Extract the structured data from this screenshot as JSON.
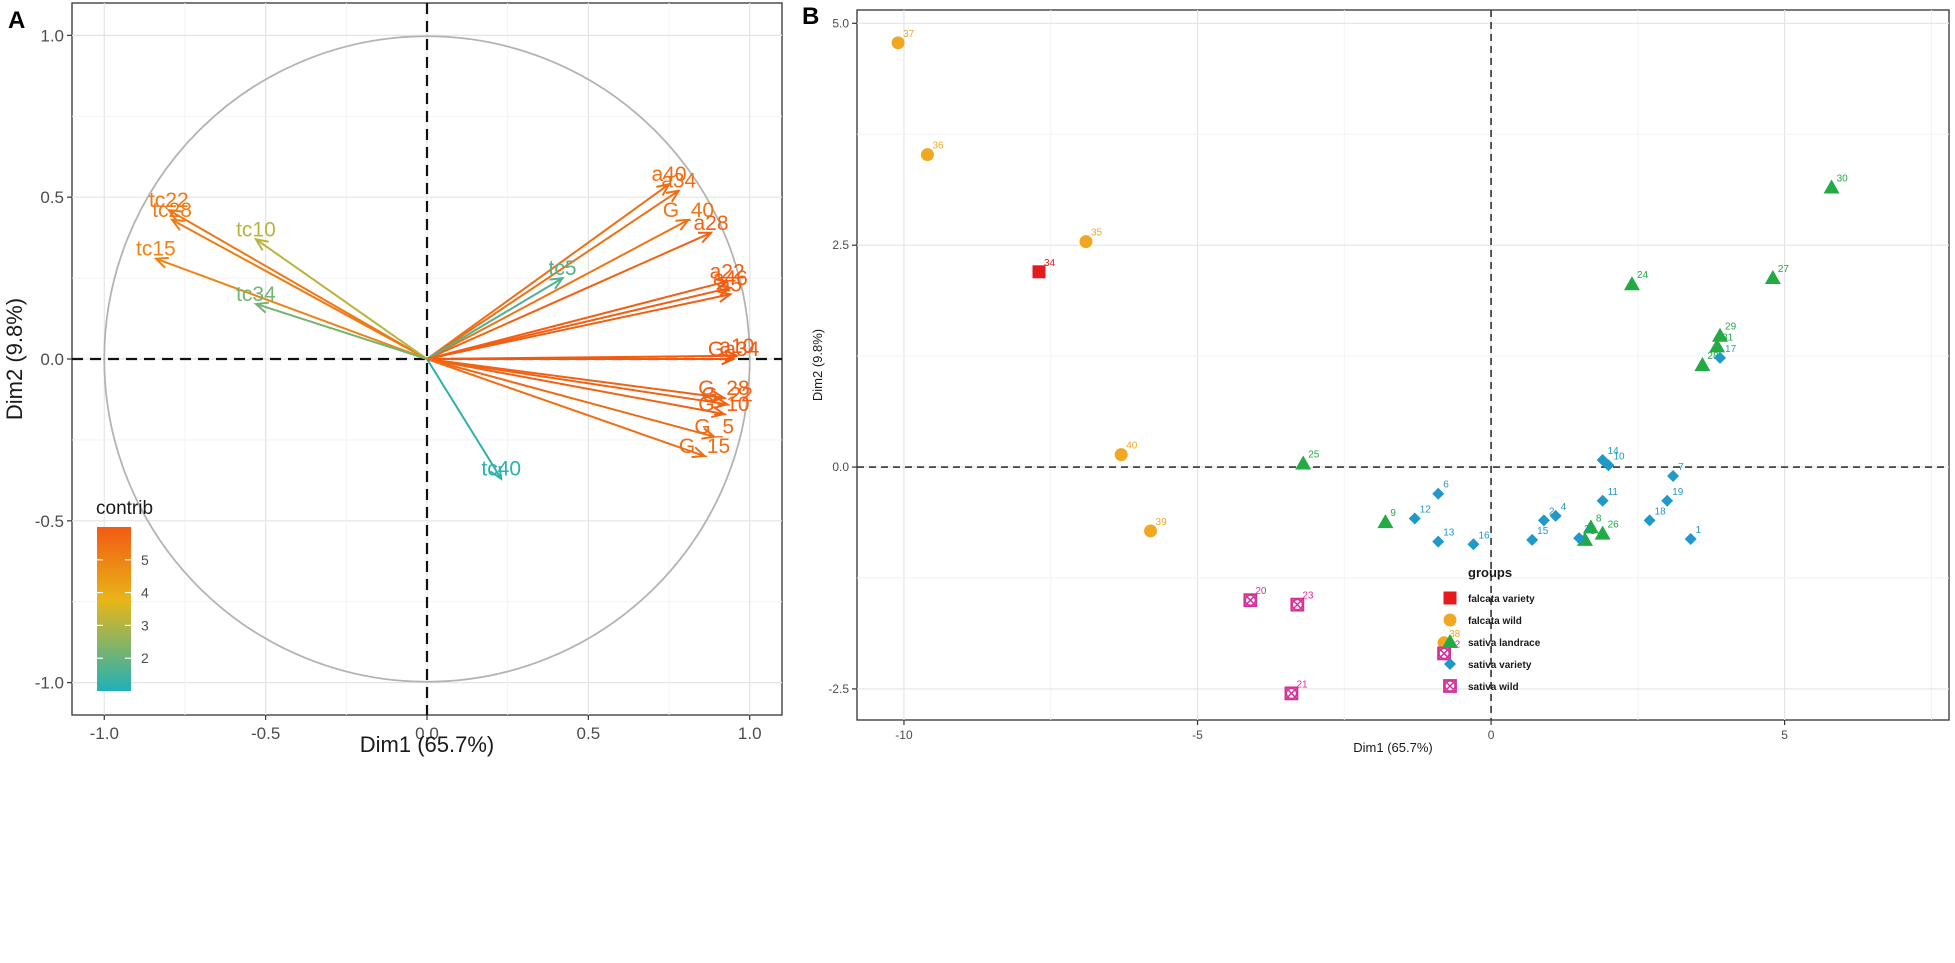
{
  "panels": {
    "a": {
      "letter": "A"
    },
    "b": {
      "letter": "B"
    }
  },
  "colors": {
    "contrib_low": "#1eb1b8",
    "contrib_mid": "#e8b618",
    "contrib_high": "#f25a12",
    "circle": "#b3b3b3",
    "falcata_variety": "#e41a1c",
    "falcata_wild": "#f0a823",
    "sativa_landrace": "#22aa44",
    "sativa_variety": "#1f99c9",
    "sativa_wild": "#d4309a"
  },
  "chart_data": [
    {
      "id": "variables-pca",
      "type": "pca-variables",
      "title": "",
      "xlabel": "Dim1 (65.7%)",
      "ylabel": "Dim2 (9.8%)",
      "xlim": [
        -1.1,
        1.1
      ],
      "ylim": [
        -1.1,
        1.1
      ],
      "xticks": [
        -1.0,
        -0.5,
        0.0,
        0.5,
        1.0
      ],
      "yticks": [
        -1.0,
        -0.5,
        0.0,
        0.5,
        1.0
      ],
      "xtick_labels": [
        "-1.0",
        "-0.5",
        "0.0",
        "0.5",
        "1.0"
      ],
      "ytick_labels": [
        "-1.0",
        "-0.5",
        "0.0",
        "0.5",
        "1.0"
      ],
      "legend": {
        "title": "contrib",
        "position": "bottom-left",
        "min": 1,
        "max": 6,
        "ticks": [
          2,
          3,
          4,
          5
        ],
        "tick_labels": [
          "2",
          "3",
          "4",
          "5"
        ]
      },
      "correlation_circle_radius": 1,
      "arrows": [
        {
          "name": "tc22",
          "x": -0.8,
          "y": 0.46,
          "contrib": 5.3
        },
        {
          "name": "tc28",
          "x": -0.79,
          "y": 0.43,
          "contrib": 5.2
        },
        {
          "name": "tc10",
          "x": -0.53,
          "y": 0.37,
          "contrib": 3.1
        },
        {
          "name": "tc15",
          "x": -0.84,
          "y": 0.31,
          "contrib": 5.0
        },
        {
          "name": "tc34",
          "x": -0.53,
          "y": 0.17,
          "contrib": 2.2
        },
        {
          "name": "a40",
          "x": 0.75,
          "y": 0.54,
          "contrib": 5.5
        },
        {
          "name": "a34",
          "x": 0.78,
          "y": 0.52,
          "contrib": 5.5
        },
        {
          "name": "G_40",
          "x": 0.81,
          "y": 0.43,
          "contrib": 5.4
        },
        {
          "name": "a28",
          "x": 0.88,
          "y": 0.39,
          "contrib": 5.8
        },
        {
          "name": "tc5",
          "x": 0.42,
          "y": 0.25,
          "contrib": 1.7
        },
        {
          "name": "a22",
          "x": 0.93,
          "y": 0.24,
          "contrib": 5.9
        },
        {
          "name": "a46",
          "x": 0.94,
          "y": 0.22,
          "contrib": 5.9
        },
        {
          "name": "a5",
          "x": 0.94,
          "y": 0.2,
          "contrib": 5.9
        },
        {
          "name": "a10",
          "x": 0.96,
          "y": 0.01,
          "contrib": 6.0
        },
        {
          "name": "Ga34",
          "x": 0.95,
          "y": 0.0,
          "contrib": 6.0
        },
        {
          "name": "G_28",
          "x": 0.92,
          "y": -0.12,
          "contrib": 5.8
        },
        {
          "name": "G_22",
          "x": 0.93,
          "y": -0.14,
          "contrib": 5.8
        },
        {
          "name": "G_10",
          "x": 0.92,
          "y": -0.17,
          "contrib": 5.8
        },
        {
          "name": "G_5",
          "x": 0.89,
          "y": -0.24,
          "contrib": 5.6
        },
        {
          "name": "G_15",
          "x": 0.86,
          "y": -0.3,
          "contrib": 5.5
        },
        {
          "name": "tc40",
          "x": 0.23,
          "y": -0.37,
          "contrib": 1.2
        }
      ]
    },
    {
      "id": "individuals-pca",
      "type": "scatter",
      "title": "",
      "xlabel": "Dim1 (65.7%)",
      "ylabel": "Dim2 (9.8%)",
      "xlim": [
        -10.8,
        7.8
      ],
      "ylim": [
        -2.85,
        5.15
      ],
      "xticks": [
        -10,
        -5,
        0,
        5
      ],
      "yticks": [
        -2.5,
        0.0,
        2.5,
        5.0
      ],
      "xtick_labels": [
        "-10",
        "-5",
        "0",
        "5"
      ],
      "ytick_labels": [
        "-2.5",
        "0.0",
        "2.5",
        "5.0"
      ],
      "legend": {
        "title": "groups",
        "position": "bottom-right",
        "entries": [
          {
            "key": "falcata_variety",
            "label": "falcata variety",
            "shape": "square"
          },
          {
            "key": "falcata_wild",
            "label": "falcata wild",
            "shape": "circle"
          },
          {
            "key": "sativa_landrace",
            "label": "sativa landrace",
            "shape": "triangle"
          },
          {
            "key": "sativa_variety",
            "label": "sativa variety",
            "shape": "diamond"
          },
          {
            "key": "sativa_wild",
            "label": "sativa wild",
            "shape": "crossbox"
          }
        ]
      },
      "points": [
        {
          "id": "34",
          "group": "falcata_variety",
          "x": -7.7,
          "y": 2.2
        },
        {
          "id": "37",
          "group": "falcata_wild",
          "x": -10.1,
          "y": 4.78
        },
        {
          "id": "36",
          "group": "falcata_wild",
          "x": -9.6,
          "y": 3.52
        },
        {
          "id": "35",
          "group": "falcata_wild",
          "x": -6.9,
          "y": 2.54
        },
        {
          "id": "40",
          "group": "falcata_wild",
          "x": -6.3,
          "y": 0.14
        },
        {
          "id": "39",
          "group": "falcata_wild",
          "x": -5.8,
          "y": -0.72
        },
        {
          "id": "38",
          "group": "falcata_wild",
          "x": -0.8,
          "y": -1.98
        },
        {
          "id": "30",
          "group": "sativa_landrace",
          "x": 5.8,
          "y": 3.15
        },
        {
          "id": "24",
          "group": "sativa_landrace",
          "x": 2.4,
          "y": 2.06
        },
        {
          "id": "27",
          "group": "sativa_landrace",
          "x": 4.8,
          "y": 2.13
        },
        {
          "id": "29",
          "group": "sativa_landrace",
          "x": 3.9,
          "y": 1.48
        },
        {
          "id": "31",
          "group": "sativa_landrace",
          "x": 3.85,
          "y": 1.36
        },
        {
          "id": "28",
          "group": "sativa_landrace",
          "x": 3.6,
          "y": 1.15
        },
        {
          "id": "25",
          "group": "sativa_landrace",
          "x": -3.2,
          "y": 0.04
        },
        {
          "id": "9",
          "group": "sativa_landrace",
          "x": -1.8,
          "y": -0.62
        },
        {
          "id": "8",
          "group": "sativa_landrace",
          "x": 1.7,
          "y": -0.68
        },
        {
          "id": "26",
          "group": "sativa_landrace",
          "x": 1.9,
          "y": -0.75
        },
        {
          "id": "5",
          "group": "sativa_landrace",
          "x": 1.6,
          "y": -0.82
        },
        {
          "id": "17",
          "group": "sativa_variety",
          "x": 3.9,
          "y": 1.23
        },
        {
          "id": "14",
          "group": "sativa_variety",
          "x": 1.9,
          "y": 0.08
        },
        {
          "id": "10",
          "group": "sativa_variety",
          "x": 2.0,
          "y": 0.02
        },
        {
          "id": "7",
          "group": "sativa_variety",
          "x": 3.1,
          "y": -0.1
        },
        {
          "id": "19",
          "group": "sativa_variety",
          "x": 3.0,
          "y": -0.38
        },
        {
          "id": "18",
          "group": "sativa_variety",
          "x": 2.7,
          "y": -0.6
        },
        {
          "id": "11",
          "group": "sativa_variety",
          "x": 1.9,
          "y": -0.38
        },
        {
          "id": "6",
          "group": "sativa_variety",
          "x": -0.9,
          "y": -0.3
        },
        {
          "id": "4",
          "group": "sativa_variety",
          "x": 1.1,
          "y": -0.55
        },
        {
          "id": "2",
          "group": "sativa_variety",
          "x": 0.9,
          "y": -0.6
        },
        {
          "id": "12",
          "group": "sativa_variety",
          "x": -1.3,
          "y": -0.58
        },
        {
          "id": "3",
          "group": "sativa_variety",
          "x": 1.5,
          "y": -0.8
        },
        {
          "id": "15",
          "group": "sativa_variety",
          "x": 0.7,
          "y": -0.82
        },
        {
          "id": "13",
          "group": "sativa_variety",
          "x": -0.9,
          "y": -0.84
        },
        {
          "id": "16",
          "group": "sativa_variety",
          "x": -0.3,
          "y": -0.87
        },
        {
          "id": "1",
          "group": "sativa_variety",
          "x": 3.4,
          "y": -0.81
        },
        {
          "id": "20",
          "group": "sativa_wild",
          "x": -4.1,
          "y": -1.5
        },
        {
          "id": "23",
          "group": "sativa_wild",
          "x": -3.3,
          "y": -1.55
        },
        {
          "id": "22",
          "group": "sativa_wild",
          "x": -0.8,
          "y": -2.1
        },
        {
          "id": "21",
          "group": "sativa_wild",
          "x": -3.4,
          "y": -2.55
        }
      ]
    }
  ]
}
